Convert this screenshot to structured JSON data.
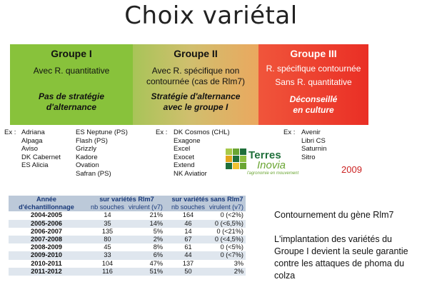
{
  "slide": {
    "title": "Choix variétal"
  },
  "groups": [
    {
      "title": "Groupe I",
      "desc": [
        "Avec R. quantitative"
      ],
      "italic": [
        "Pas de stratégie",
        "d'alternance"
      ],
      "color": "#88c23b"
    },
    {
      "title": "Groupe II",
      "desc": [
        "Avec R. spécifique non",
        "contournée (cas de Rlm7)"
      ],
      "italic": [
        "Stratégie d'alternance",
        "avec le groupe I"
      ],
      "color": "#d0bf6e"
    },
    {
      "title": "Groupe III",
      "desc": [
        "R. spécifique contournée",
        "Sans R. quantitative"
      ],
      "italic": [
        "Déconseillé",
        "en culture"
      ],
      "color": "#ea2f25"
    }
  ],
  "varieties": {
    "ex_label": "Ex :",
    "group1_col1": [
      "Adriana",
      "Alpaga",
      "Aviso",
      "DK Cabernet",
      "ES Alicia"
    ],
    "group1_col2": [
      "ES Neptune (PS)",
      "Flash (PS)",
      "Grizzly",
      "Kadore",
      "Ovation",
      "Safran (PS)"
    ],
    "group2": [
      "DK Cosmos (CHL)",
      "Exagone",
      "Excel",
      "Exocet",
      "Extend",
      "NK Aviatior"
    ],
    "group3": [
      "Avenir",
      "Libri CS",
      "Saturnin",
      "Sitro"
    ]
  },
  "logo": {
    "terres": "Terres",
    "inovia": "Inovia",
    "tagline": "l'agronomie en mouvement"
  },
  "year": "2009",
  "table": {
    "head_year": [
      "Année",
      "d'échantillonnage"
    ],
    "group_rlm7": "sur variétés Rlm7",
    "group_sans": "sur variétés sans Rlm7",
    "sub": [
      "nb souches",
      "virulent (v7)",
      "nb souches",
      "virulent (v7)"
    ],
    "rows": [
      [
        "2004-2005",
        "14",
        "21%",
        "164",
        "0 (<2%)"
      ],
      [
        "2005-2006",
        "35",
        "14%",
        "46",
        "0 (<6,5%)"
      ],
      [
        "2006-2007",
        "135",
        "5%",
        "14",
        "0 (<21%)"
      ],
      [
        "2007-2008",
        "80",
        "2%",
        "67",
        "0 (<4,5%)"
      ],
      [
        "2008-2009",
        "45",
        "8%",
        "61",
        "0 (<5%)"
      ],
      [
        "2009-2010",
        "33",
        "6%",
        "44",
        "0 (<7%)"
      ],
      [
        "2010-2011",
        "104",
        "47%",
        "137",
        "3%"
      ],
      [
        "2011-2012",
        "116",
        "51%",
        "50",
        "2%"
      ]
    ]
  },
  "notes": {
    "n1": "Contournement du gène Rlm7",
    "n2": "L'implantation des variétés du Groupe I devient la seule garantie contre les attaques de phoma du colza"
  }
}
